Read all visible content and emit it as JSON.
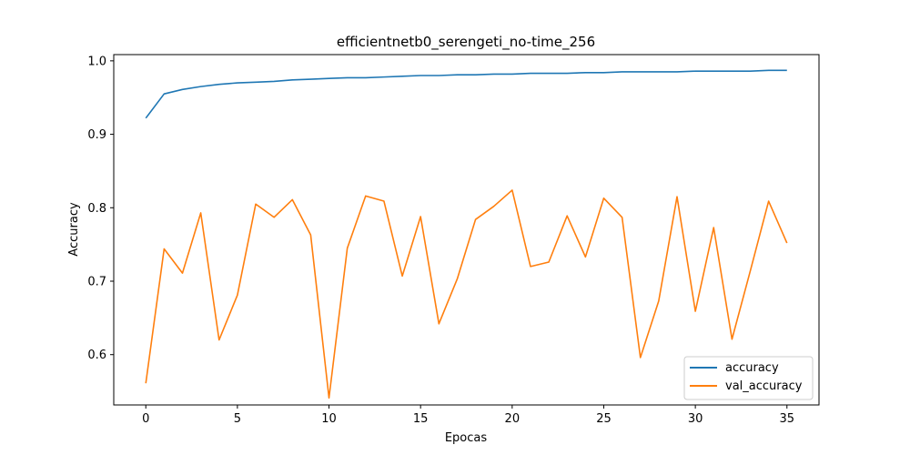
{
  "chart_data": {
    "type": "line",
    "title": "efficientnetb0_serengeti_no-time_256",
    "xlabel": "Epocas",
    "ylabel": "Accuracy",
    "xlim": [
      -1.75,
      36.75
    ],
    "ylim": [
      0.5315,
      1.0085
    ],
    "xticks": [
      0,
      5,
      10,
      15,
      20,
      25,
      30,
      35
    ],
    "xtick_labels": [
      "0",
      "5",
      "10",
      "15",
      "20",
      "25",
      "30",
      "35"
    ],
    "yticks": [
      0.6,
      0.7,
      0.8,
      0.9,
      1.0
    ],
    "ytick_labels": [
      "0.6",
      "0.7",
      "0.8",
      "0.9",
      "1.0"
    ],
    "grid": false,
    "legend_position": "lower right",
    "x": [
      0,
      1,
      2,
      3,
      4,
      5,
      6,
      7,
      8,
      9,
      10,
      11,
      12,
      13,
      14,
      15,
      16,
      17,
      18,
      19,
      20,
      21,
      22,
      23,
      24,
      25,
      26,
      27,
      28,
      29,
      30,
      31,
      32,
      33,
      34,
      35
    ],
    "series": [
      {
        "name": "accuracy",
        "color": "#1f77b4",
        "values": [
          0.922,
          0.955,
          0.961,
          0.965,
          0.968,
          0.97,
          0.971,
          0.972,
          0.974,
          0.975,
          0.976,
          0.977,
          0.977,
          0.978,
          0.979,
          0.98,
          0.98,
          0.981,
          0.981,
          0.982,
          0.982,
          0.983,
          0.983,
          0.983,
          0.984,
          0.984,
          0.985,
          0.985,
          0.985,
          0.985,
          0.986,
          0.986,
          0.986,
          0.986,
          0.987,
          0.987
        ]
      },
      {
        "name": "val_accuracy",
        "color": "#ff7f0e",
        "values": [
          0.561,
          0.744,
          0.711,
          0.793,
          0.62,
          0.681,
          0.805,
          0.787,
          0.811,
          0.763,
          0.541,
          0.745,
          0.816,
          0.809,
          0.707,
          0.788,
          0.642,
          0.703,
          0.784,
          0.802,
          0.824,
          0.72,
          0.726,
          0.789,
          0.733,
          0.813,
          0.787,
          0.596,
          0.673,
          0.815,
          0.659,
          0.773,
          0.621,
          0.714,
          0.809,
          0.752
        ]
      }
    ]
  }
}
